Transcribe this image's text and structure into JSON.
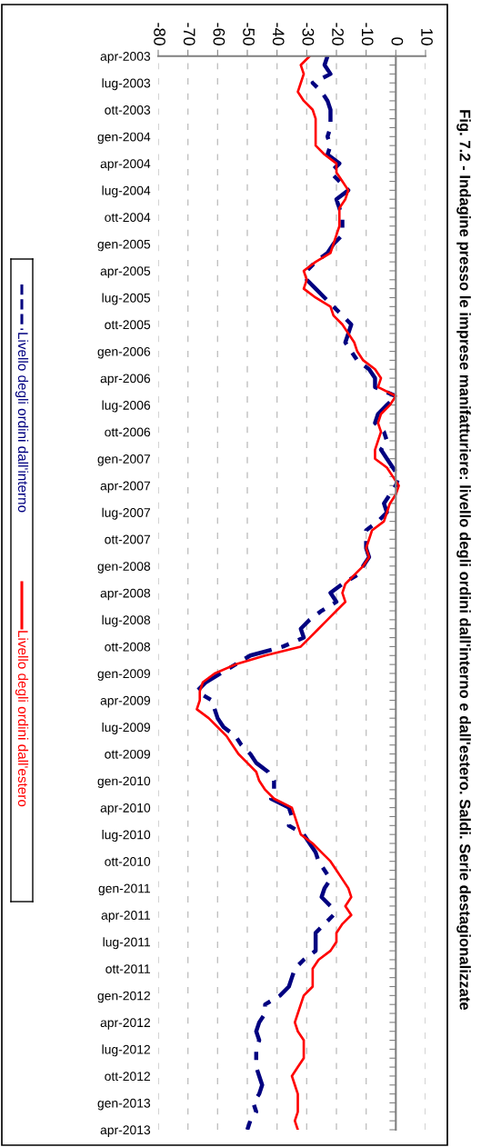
{
  "chart_data": {
    "type": "line",
    "title": "Fig. 7.2 - Indagine presso le imprese manifatturiere: livello degli ordini dall'interno e dall'estero. Saldi. Serie destagionalizzate",
    "categories": [
      "apr-2003",
      null,
      null,
      "lug-2003",
      null,
      null,
      "ott-2003",
      null,
      null,
      "gen-2004",
      null,
      null,
      "apr-2004",
      null,
      null,
      "lug-2004",
      null,
      null,
      "ott-2004",
      null,
      null,
      "gen-2005",
      null,
      null,
      "apr-2005",
      null,
      null,
      "lug-2005",
      null,
      null,
      "ott-2005",
      null,
      null,
      "gen-2006",
      null,
      null,
      "apr-2006",
      null,
      null,
      "lug-2006",
      null,
      null,
      "ott-2006",
      null,
      null,
      "gen-2007",
      null,
      null,
      "apr-2007",
      null,
      null,
      "lug-2007",
      null,
      null,
      "ott-2007",
      null,
      null,
      "gen-2008",
      null,
      null,
      "apr-2008",
      null,
      null,
      "lug-2008",
      null,
      null,
      "ott-2008",
      null,
      null,
      "gen-2009",
      null,
      null,
      "apr-2009",
      null,
      null,
      "lug-2009",
      null,
      null,
      "ott-2009",
      null,
      null,
      "gen-2010",
      null,
      null,
      "apr-2010",
      null,
      null,
      "lug-2010",
      null,
      null,
      "ott-2010",
      null,
      null,
      "gen-2011",
      null,
      null,
      "apr-2011",
      null,
      null,
      "lug-2011",
      null,
      null,
      "ott-2011",
      null,
      null,
      "gen-2012",
      null,
      null,
      "apr-2012",
      null,
      null,
      "lug-2012",
      null,
      null,
      "ott-2012",
      null,
      null,
      "gen-2013",
      null,
      null,
      "apr-2013"
    ],
    "series": [
      {
        "name": "Livello degli ordini dall'interno",
        "color": "#000080",
        "line_style": "dashed",
        "values": [
          -23,
          -24,
          -22,
          -28,
          -25,
          -23,
          -22,
          -22,
          -22,
          -23,
          -22,
          -23,
          -19,
          -22,
          -19,
          -16,
          -20,
          -19,
          -18,
          -18,
          -18,
          -21,
          -23,
          -27,
          -30,
          -30,
          -27,
          -24,
          -21,
          -18,
          -15,
          -16,
          -17,
          -15,
          -13,
          -9,
          -7,
          -7,
          0,
          -3,
          -6,
          -7,
          -4,
          -3,
          -5,
          -3,
          -1,
          1,
          0,
          -2,
          -4,
          -3,
          -6,
          -10,
          -10,
          -10,
          -9,
          -11,
          -13,
          -18,
          -22,
          -20,
          -25,
          -29,
          -32,
          -31,
          -38,
          -49,
          -54,
          -59,
          -64,
          -67,
          -62,
          -61,
          -60,
          -58,
          -54,
          -52,
          -49,
          -47,
          -43,
          -41,
          -41,
          -42,
          -36,
          -35,
          -36,
          -31,
          -29,
          -27,
          -26,
          -24,
          -22,
          -24,
          -25,
          -22,
          -21,
          -24,
          -27,
          -27,
          -27,
          -31,
          -34,
          -35,
          -36,
          -39,
          -44,
          -44,
          -46,
          -47,
          -46,
          -47,
          -47,
          -47,
          -46,
          -45,
          -46,
          -48,
          -47,
          -49,
          -50
        ]
      },
      {
        "name": "Livello degli ordini dall'estero",
        "color": "#ff0000",
        "line_style": "solid",
        "values": [
          -29,
          -32,
          -31,
          -32,
          -33,
          -31,
          -28,
          -27,
          -27,
          -27,
          -27,
          -24,
          -20,
          -20,
          -18,
          -16,
          -17,
          -19,
          -19,
          -19,
          -20,
          -21,
          -22,
          -27,
          -31,
          -30,
          -31,
          -27,
          -22,
          -21,
          -18,
          -16,
          -14,
          -13,
          -11,
          -7,
          -5,
          -6,
          0,
          -2,
          -5,
          -6,
          -5,
          -6,
          -7,
          -7,
          -3,
          -1,
          1,
          0,
          -2,
          -3,
          -4,
          -8,
          -9,
          -10,
          -9,
          -11,
          -14,
          -17,
          -18,
          -17,
          -20,
          -23,
          -26,
          -29,
          -32,
          -44,
          -54,
          -61,
          -65,
          -66,
          -66,
          -67,
          -63,
          -60,
          -57,
          -55,
          -53,
          -50,
          -47,
          -46,
          -44,
          -41,
          -35,
          -34,
          -33,
          -32,
          -28,
          -25,
          -22,
          -20,
          -18,
          -16,
          -15,
          -17,
          -15,
          -18,
          -20,
          -20,
          -22,
          -26,
          -28,
          -28,
          -28,
          -31,
          -32,
          -33,
          -34,
          -33,
          -31,
          -31,
          -31,
          -33,
          -35,
          -34,
          -33,
          -33,
          -33,
          -34,
          -33
        ]
      }
    ],
    "orientation": "horizontal",
    "xlim": [
      -80,
      10
    ],
    "xticks": [
      -80,
      -70,
      -60,
      -50,
      -40,
      -30,
      -20,
      -10,
      0,
      10
    ],
    "grid": "x",
    "legend": "left",
    "marker": "none"
  }
}
